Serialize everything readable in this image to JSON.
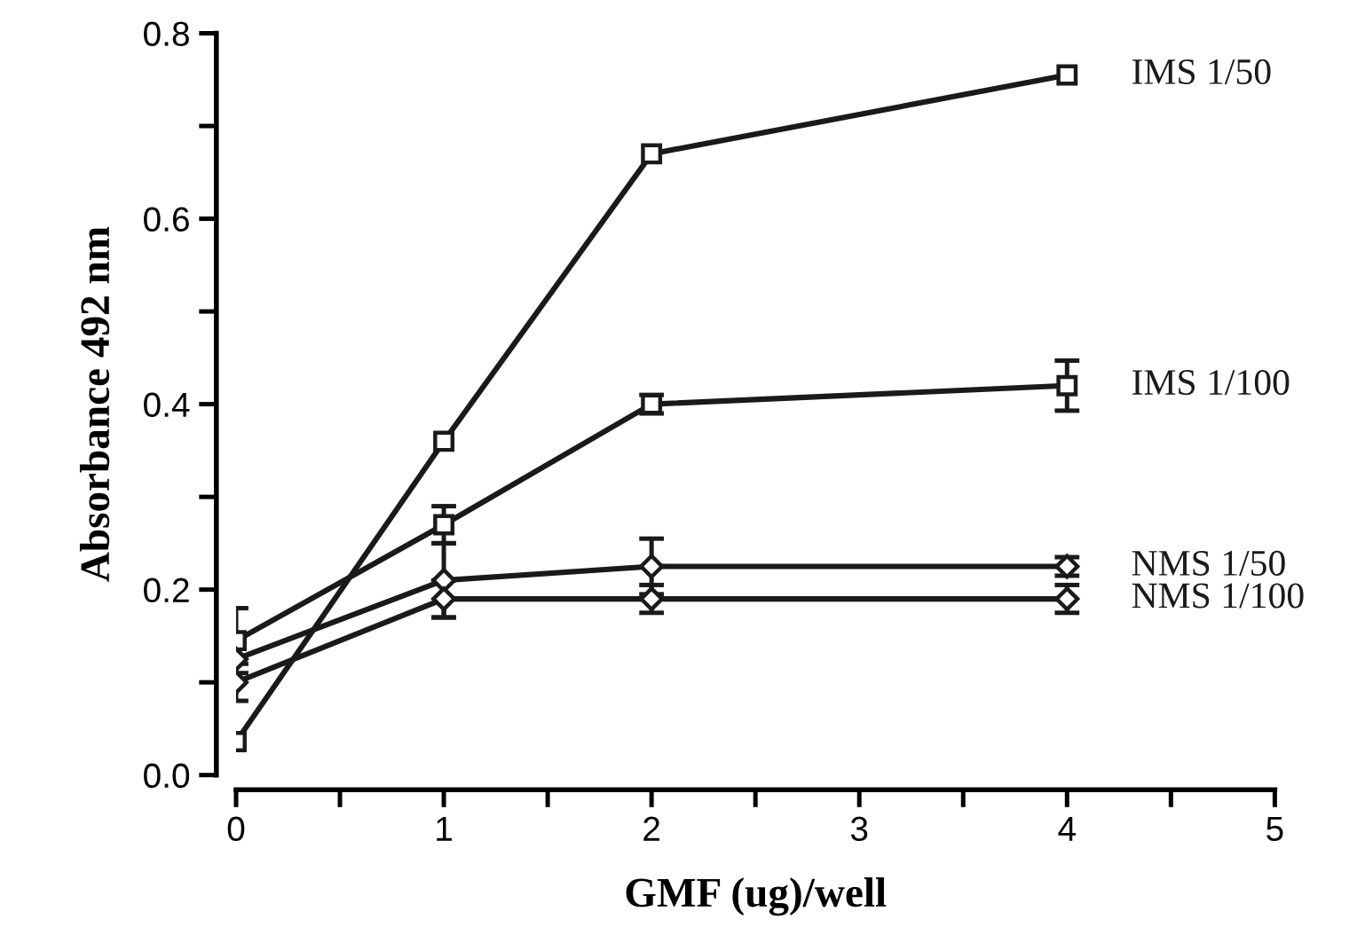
{
  "chart_data": {
    "type": "line",
    "xlabel": "GMF (ug)/well",
    "ylabel": "Absorbance 492 nm",
    "x": [
      0,
      1,
      2,
      4
    ],
    "series": [
      {
        "name": "IMS 1/50",
        "color": "#1a1a1a",
        "marker": "square",
        "values": [
          0.036,
          0.36,
          0.67,
          0.755
        ]
      },
      {
        "name": "IMS 1/100",
        "color": "#1a1a1a",
        "marker": "square",
        "values": [
          0.145,
          0.27,
          0.4,
          0.42
        ],
        "errors": [
          0.035,
          0.02,
          0.01,
          0.027
        ]
      },
      {
        "name": "NMS 1/50",
        "color": "#1a1a1a",
        "marker": "diamond",
        "values": [
          0.125,
          0.21,
          0.225,
          0.225
        ],
        "errors": [
          null,
          0.04,
          0.03,
          0.01
        ]
      },
      {
        "name": "NMS 1/100",
        "color": "#1a1a1a",
        "marker": "diamond",
        "values": [
          0.1,
          0.19,
          0.19,
          0.19
        ],
        "errors": [
          0.02,
          0.02,
          0.015,
          0.015
        ]
      }
    ],
    "xlim": [
      0,
      5
    ],
    "xticks": [
      0,
      {
        "value": 0.5,
        "label": null
      },
      1,
      {
        "value": 1.5,
        "label": null
      },
      2,
      {
        "value": 2.5,
        "label": null
      },
      3,
      {
        "value": 3.5,
        "label": null
      },
      4,
      {
        "value": 4.5,
        "label": null
      },
      5
    ],
    "ylim": [
      0,
      0.8
    ],
    "yticks": [
      {
        "value": 0,
        "label": "0.0"
      },
      {
        "value": 0.1,
        "label": null
      },
      {
        "value": 0.2,
        "label": "0.2"
      },
      {
        "value": 0.3,
        "label": null
      },
      {
        "value": 0.4,
        "label": "0.4"
      },
      {
        "value": 0.5,
        "label": null
      },
      {
        "value": 0.6,
        "label": "0.6"
      },
      {
        "value": 0.7,
        "label": null
      },
      {
        "value": 0.8,
        "label": "0.8"
      }
    ],
    "grid": false,
    "legend": false,
    "line_style": "solid"
  }
}
